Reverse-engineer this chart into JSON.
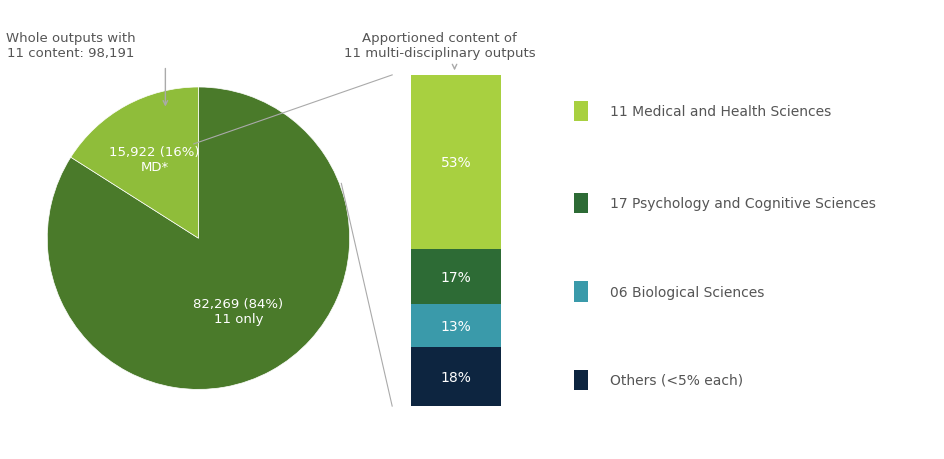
{
  "pie_values": [
    84,
    16
  ],
  "pie_colors": [
    "#4a7a2a",
    "#8fbd3a"
  ],
  "pie_labels": [
    "82,269 (84%)\n11 only",
    "15,922 (16%)\nMD*"
  ],
  "pie_label_colors": [
    "#ffffff",
    "#ffffff"
  ],
  "pie_explode": [
    0,
    0.0
  ],
  "bar_values": [
    53,
    17,
    13,
    18
  ],
  "bar_colors": [
    "#a8d040",
    "#2d6b35",
    "#3a9aaa",
    "#0d2540"
  ],
  "bar_labels": [
    "53%",
    "17%",
    "13%",
    "18%"
  ],
  "bar_order_from_top": true,
  "legend_labels": [
    "11 Medical and Health Sciences",
    "17 Psychology and Cognitive Sciences",
    "06 Biological Sciences",
    "Others (<5% each)"
  ],
  "legend_colors": [
    "#a8d040",
    "#2d6b35",
    "#3a9aaa",
    "#0d2540"
  ],
  "title_pie": "Whole outputs with\n11 content: 98,191",
  "title_bar": "Apportioned content of\n11 multi-disciplinary outputs",
  "bg_color": "#ffffff",
  "text_color_white": "#ffffff",
  "text_color_label": "#555555",
  "pie_label_fontsize": 9.5,
  "bar_label_fontsize": 10,
  "legend_fontsize": 10,
  "title_fontsize": 9.5
}
